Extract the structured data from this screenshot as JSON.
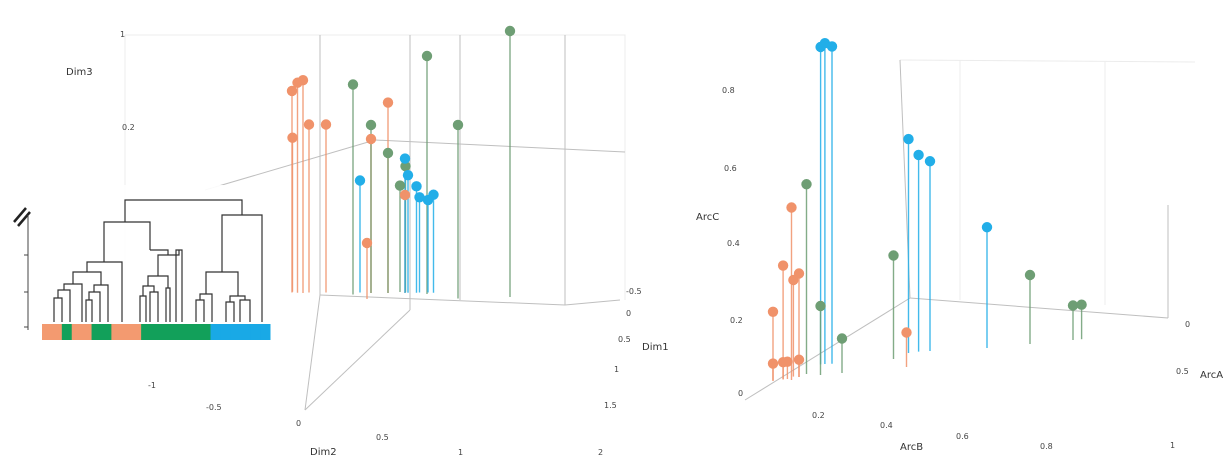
{
  "colors": {
    "orange": "#f0926a",
    "green": "#6e9e74",
    "blue": "#22aee8",
    "bar_orange": "#f39a70",
    "bar_green": "#12a05a",
    "bar_blue": "#19a9e6"
  },
  "chart_data": [
    {
      "type": "scatter",
      "style": "3d-stem",
      "title": "",
      "axes": {
        "x": {
          "label": "Dim1",
          "ticks": [
            "-0.5",
            "0",
            "0.5",
            "1",
            "1.5"
          ]
        },
        "y": {
          "label": "Dim2",
          "ticks": [
            "-1",
            "-0.5",
            "0",
            "0.5",
            "1",
            "2"
          ]
        },
        "z": {
          "label": "Dim3",
          "ticks": [
            "1",
            "0.2"
          ]
        }
      },
      "series": [
        {
          "color_key": "orange",
          "points": [
            [
              -0.4,
              0.1,
              0.72
            ],
            [
              -0.35,
              0.1,
              0.75
            ],
            [
              -0.3,
              0.1,
              0.76
            ],
            [
              -0.3,
              0.2,
              0.6
            ],
            [
              -0.2,
              0.3,
              0.6
            ],
            [
              -0.45,
              0.2,
              0.55
            ],
            [
              0.1,
              0.5,
              0.55
            ],
            [
              0.2,
              0.6,
              0.68
            ],
            [
              0.3,
              0.7,
              0.35
            ],
            [
              0.5,
              -0.3,
              0.2
            ]
          ]
        },
        {
          "color_key": "green",
          "points": [
            [
              0.1,
              0.2,
              0.75
            ],
            [
              0.5,
              0.7,
              0.85
            ],
            [
              1.2,
              0.8,
              0.95
            ],
            [
              0.1,
              0.5,
              0.6
            ],
            [
              0.2,
              0.6,
              0.5
            ],
            [
              0.25,
              0.8,
              0.45
            ],
            [
              1.0,
              0.3,
              0.62
            ],
            [
              0.2,
              0.8,
              0.38
            ]
          ]
        },
        {
          "color_key": "blue",
          "points": [
            [
              0.0,
              0.5,
              0.4
            ],
            [
              0.3,
              0.7,
              0.48
            ],
            [
              0.3,
              0.75,
              0.42
            ],
            [
              0.35,
              0.8,
              0.38
            ],
            [
              0.4,
              0.9,
              0.33
            ],
            [
              0.35,
              0.85,
              0.34
            ],
            [
              0.45,
              0.9,
              0.35
            ]
          ]
        }
      ]
    },
    {
      "type": "scatter",
      "style": "3d-stem",
      "title": "",
      "axes": {
        "x": {
          "label": "ArcA",
          "ticks": [
            "0",
            "0.5"
          ]
        },
        "y": {
          "label": "ArcB",
          "ticks": [
            "0",
            "0.2",
            "0.4",
            "0.6",
            "0.8",
            "1"
          ]
        },
        "z": {
          "label": "ArcC",
          "ticks": [
            "0.2",
            "0.4",
            "0.6",
            "0.8"
          ]
        }
      },
      "series": [
        {
          "color_key": "blue",
          "points": [
            [
              0.02,
              0.3,
              0.92
            ],
            [
              0.03,
              0.31,
              0.93
            ],
            [
              0.05,
              0.32,
              0.92
            ],
            [
              0.2,
              0.55,
              0.62
            ],
            [
              0.22,
              0.58,
              0.57
            ],
            [
              0.25,
              0.6,
              0.55
            ],
            [
              0.4,
              0.7,
              0.35
            ]
          ]
        },
        {
          "color_key": "green",
          "points": [
            [
              0.05,
              0.15,
              0.55
            ],
            [
              0.2,
              0.45,
              0.3
            ],
            [
              0.5,
              0.8,
              0.2
            ],
            [
              0.6,
              0.9,
              0.1
            ],
            [
              0.62,
              0.92,
              0.1
            ],
            [
              0.1,
              0.15,
              0.2
            ],
            [
              0.15,
              0.2,
              0.1
            ]
          ]
        },
        {
          "color_key": "orange",
          "points": [
            [
              0.05,
              0.05,
              0.5
            ],
            [
              0.02,
              0.05,
              0.33
            ],
            [
              0.03,
              0.1,
              0.28
            ],
            [
              0.0,
              0.02,
              0.2
            ],
            [
              0.0,
              0.02,
              0.05
            ],
            [
              0.02,
              0.05,
              0.05
            ],
            [
              0.03,
              0.06,
              0.05
            ],
            [
              0.05,
              0.1,
              0.05
            ],
            [
              0.3,
              0.35,
              0.1
            ],
            [
              0.05,
              0.1,
              0.3
            ]
          ]
        }
      ]
    },
    {
      "type": "dendrogram",
      "title": "",
      "leaf_colors": [
        "orange",
        "orange",
        "green",
        "orange",
        "orange",
        "green",
        "green",
        "orange",
        "orange",
        "orange",
        "green",
        "green",
        "green",
        "green",
        "green",
        "green",
        "green",
        "blue",
        "blue",
        "blue",
        "blue",
        "blue",
        "blue"
      ]
    }
  ]
}
